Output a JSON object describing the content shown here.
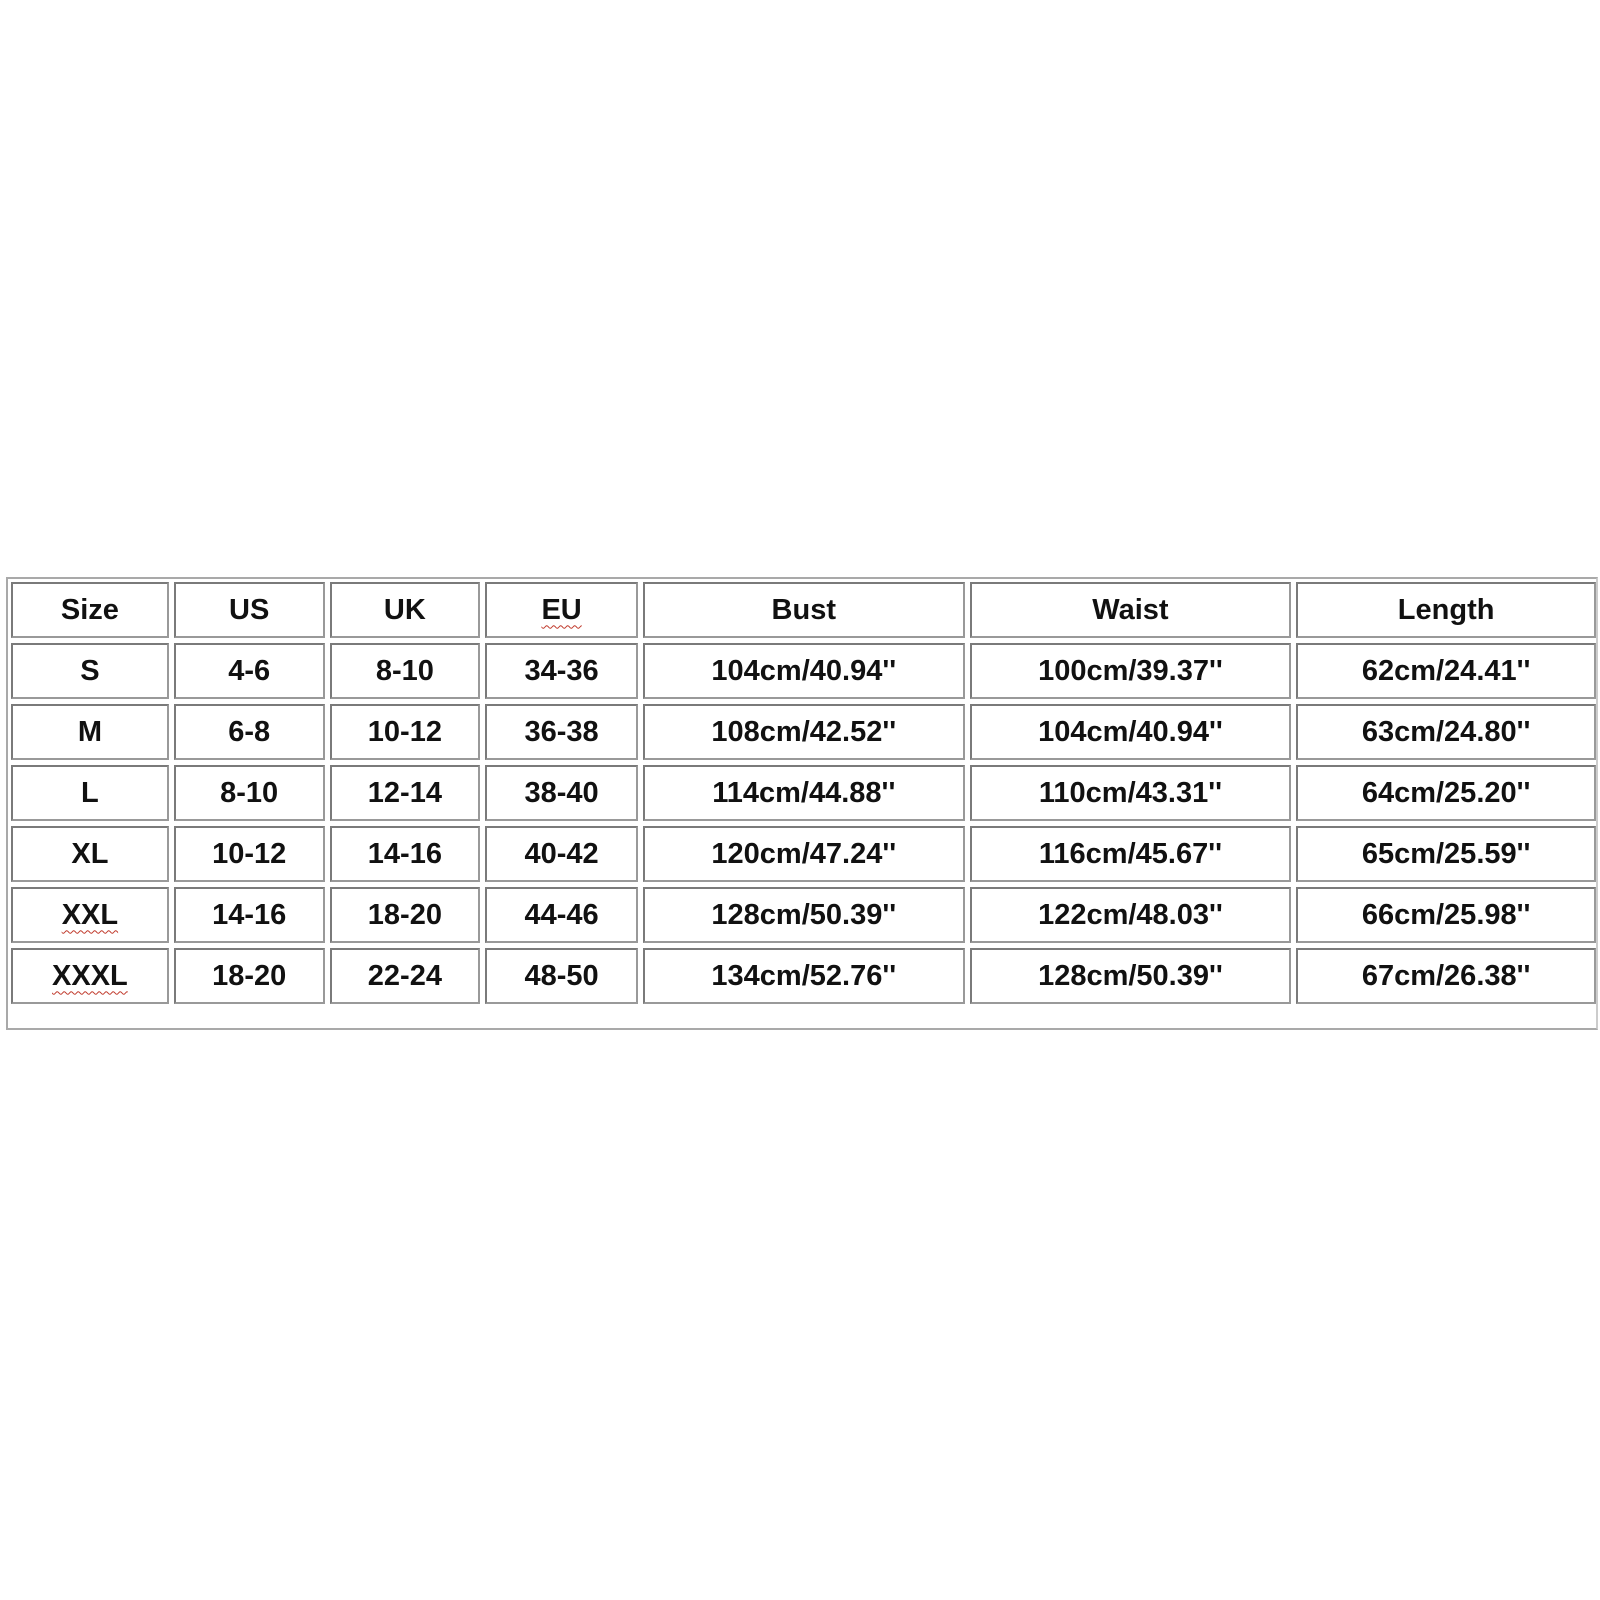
{
  "table": {
    "headers": [
      "Size",
      "US",
      "UK",
      "EU",
      "Bust",
      "Waist",
      "Length"
    ],
    "rows": [
      [
        "S",
        "4-6",
        "8-10",
        "34-36",
        "104cm/40.94''",
        "100cm/39.37''",
        "62cm/24.41''"
      ],
      [
        "M",
        "6-8",
        "10-12",
        "36-38",
        "108cm/42.52''",
        "104cm/40.94''",
        "63cm/24.80''"
      ],
      [
        "L",
        "8-10",
        "12-14",
        "38-40",
        "114cm/44.88''",
        "110cm/43.31''",
        "64cm/25.20''"
      ],
      [
        "XL",
        "10-12",
        "14-16",
        "40-42",
        "120cm/47.24''",
        "116cm/45.67''",
        "65cm/25.59''"
      ],
      [
        "XXL",
        "14-16",
        "18-20",
        "44-46",
        "128cm/50.39''",
        "122cm/48.03''",
        "66cm/25.98''"
      ],
      [
        "XXXL",
        "18-20",
        "22-24",
        "48-50",
        "134cm/52.76''",
        "128cm/50.39''",
        "67cm/26.38''"
      ]
    ],
    "spellcheck_marked": [
      "EU",
      "XXL",
      "XXXL"
    ],
    "colors": {
      "text": "#111111",
      "border": "#7a7a7a",
      "spellcheck": "#c0392b"
    }
  }
}
